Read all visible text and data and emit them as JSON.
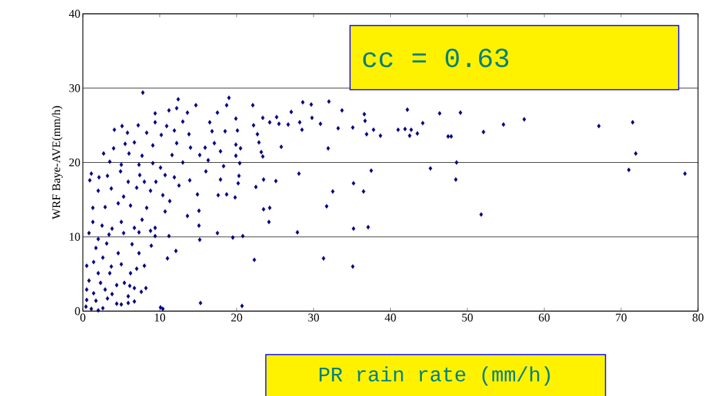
{
  "chart_data": {
    "type": "scatter",
    "xlabel": "PR rain rate (mm/h)",
    "ylabel": "WRF Baye-AVE(mm/h)",
    "annotations": [
      "cc = 0.63"
    ],
    "xlim": [
      0,
      80
    ],
    "ylim": [
      0,
      40
    ],
    "xticks": [
      0,
      10,
      20,
      30,
      40,
      50,
      60,
      70,
      80
    ],
    "yticks": [
      0,
      10,
      20,
      30,
      40
    ],
    "grid": "y",
    "marker": "diamond",
    "color": "#000080",
    "x": [
      49.1,
      52.1,
      54.7,
      57.4,
      67.1,
      71.5,
      71.9,
      71.0,
      78.3,
      51.8,
      48.6,
      48.5,
      22.1,
      28.6,
      29.7,
      32.0,
      33.7,
      27.1,
      25.2,
      23.4,
      24.3,
      25.5,
      26.7,
      28.2,
      28.5,
      30.9,
      29.8,
      22.2,
      22.7,
      22.9,
      25.8,
      23.2,
      23.4,
      33.2,
      35.1,
      36.6,
      36.7,
      36.9,
      37.8,
      38.7,
      31.9,
      41.0,
      41.9,
      42.2,
      42.7,
      42.5,
      43.5,
      44.2,
      46.4,
      47.5,
      47.9,
      45.2,
      37.5,
      28.1,
      25.1,
      23.5,
      22.5,
      35.2,
      32.5,
      36.5,
      31.7,
      23.5,
      24.3,
      24.2,
      27.9,
      35.2,
      37.1,
      20.8,
      22.3,
      31.3,
      35.1,
      20.7,
      19.9,
      20.1,
      19.9,
      20.5,
      19.9,
      20.4,
      20.3,
      20.2,
      19.8,
      7.8,
      12.4,
      14.7,
      19.0,
      18.7,
      12.2,
      9.4,
      11.2,
      13.6,
      17.5,
      9.4,
      13.0,
      16.5,
      5.1,
      7.2,
      4.1,
      10.9,
      11.9,
      16.8,
      18.5,
      5.8,
      8.3,
      10.2,
      13.8,
      5.5,
      6.7,
      9.1,
      12.2,
      14.0,
      15.9,
      17.1,
      2.7,
      4.0,
      6.0,
      7.7,
      11.6,
      15.2,
      17.9,
      3.5,
      5.0,
      7.3,
      9.1,
      10.1,
      13.0,
      16.3,
      18.3,
      1.1,
      0.9,
      2.1,
      3.2,
      4.9,
      5.9,
      7.4,
      8.0,
      9.5,
      10.7,
      11.9,
      12.5,
      13.9,
      16.0,
      17.9,
      2.0,
      3.7,
      5.3,
      7.0,
      8.8,
      14.9,
      17.6,
      18.7,
      1.3,
      2.9,
      4.6,
      6.2,
      8.3,
      10.4,
      11.3,
      10.7,
      15.1,
      13.6,
      1.3,
      2.5,
      3.8,
      5.0,
      6.7,
      7.7,
      9.4,
      15.1,
      0.8,
      2.0,
      3.4,
      5.3,
      7.3,
      8.8,
      9.4,
      11.2,
      15.2,
      17.5,
      19.5,
      1.7,
      3.1,
      4.6,
      6.4,
      7.3,
      8.9,
      12.1,
      11.0,
      0.5,
      1.4,
      2.6,
      3.7,
      5.0,
      7.0,
      8.0,
      2.0,
      3.5,
      6.2,
      0.8,
      2.3,
      4.4,
      5.4,
      6.1,
      6.7,
      8.2,
      7.6,
      0.5,
      1.4,
      2.9,
      3.8,
      5.9,
      0.5,
      1.7,
      3.2,
      4.4,
      5.0,
      5.9,
      6.7,
      0.4,
      1.1,
      2.0,
      2.6,
      10.1,
      10.4,
      15.3
    ],
    "values": [
      26.7,
      24.1,
      25.1,
      25.8,
      24.9,
      25.4,
      21.2,
      19.0,
      18.5,
      13.0,
      20.0,
      17.7,
      27.7,
      28.1,
      27.8,
      28.2,
      27.0,
      26.8,
      26.1,
      26.0,
      25.4,
      25.2,
      25.1,
      25.4,
      24.4,
      25.2,
      26.0,
      25.0,
      23.8,
      22.7,
      22.1,
      21.4,
      20.8,
      24.6,
      24.7,
      26.5,
      25.6,
      23.8,
      24.4,
      23.6,
      21.9,
      24.4,
      24.5,
      27.1,
      24.4,
      23.6,
      23.9,
      25.3,
      26.6,
      23.5,
      23.5,
      19.2,
      18.9,
      18.5,
      17.5,
      17.7,
      16.7,
      17.2,
      16.1,
      16.1,
      14.1,
      13.7,
      13.9,
      12.0,
      10.6,
      11.1,
      11.3,
      10.1,
      6.9,
      7.1,
      6.0,
      0.7,
      25.9,
      24.3,
      22.4,
      21.9,
      20.9,
      19.9,
      18.2,
      17.2,
      15.3,
      29.4,
      28.5,
      27.7,
      28.7,
      27.7,
      27.3,
      26.6,
      27.0,
      26.7,
      26.7,
      25.4,
      25.5,
      25.4,
      24.9,
      25.0,
      24.4,
      24.9,
      24.3,
      24.2,
      24.2,
      24.0,
      24.0,
      23.7,
      23.8,
      22.5,
      22.7,
      22.3,
      22.6,
      22.0,
      22.0,
      22.6,
      21.2,
      21.9,
      21.2,
      20.9,
      21.0,
      21.0,
      21.5,
      20.1,
      19.7,
      19.7,
      19.9,
      19.3,
      20.0,
      20.3,
      19.5,
      18.5,
      17.6,
      18.0,
      18.2,
      18.8,
      17.4,
      18.3,
      17.4,
      17.4,
      18.3,
      18.0,
      16.9,
      17.6,
      18.8,
      17.7,
      16.2,
      16.5,
      15.4,
      16.6,
      16.2,
      15.7,
      15.6,
      15.7,
      13.9,
      14.0,
      14.5,
      14.2,
      13.9,
      15.6,
      14.8,
      13.4,
      13.5,
      12.8,
      12.0,
      11.5,
      11.1,
      12.0,
      11.2,
      12.3,
      11.2,
      11.5,
      10.5,
      9.7,
      10.3,
      10.5,
      10.6,
      10.8,
      10.1,
      10.1,
      9.6,
      10.5,
      9.9,
      8.5,
      9.1,
      7.8,
      9.0,
      7.8,
      8.8,
      8.1,
      7.1,
      6.1,
      6.6,
      7.2,
      6.0,
      6.3,
      5.7,
      6.1,
      5.1,
      5.1,
      5.1,
      4.1,
      3.8,
      3.5,
      3.8,
      3.4,
      3.1,
      3.1,
      2.6,
      2.9,
      2.4,
      2.9,
      2.3,
      2.0,
      1.5,
      1.4,
      1.7,
      1.0,
      0.9,
      1.1,
      1.3,
      0.6,
      0.3,
      0.1,
      0.4,
      0.5,
      0.3,
      1.1
    ]
  }
}
